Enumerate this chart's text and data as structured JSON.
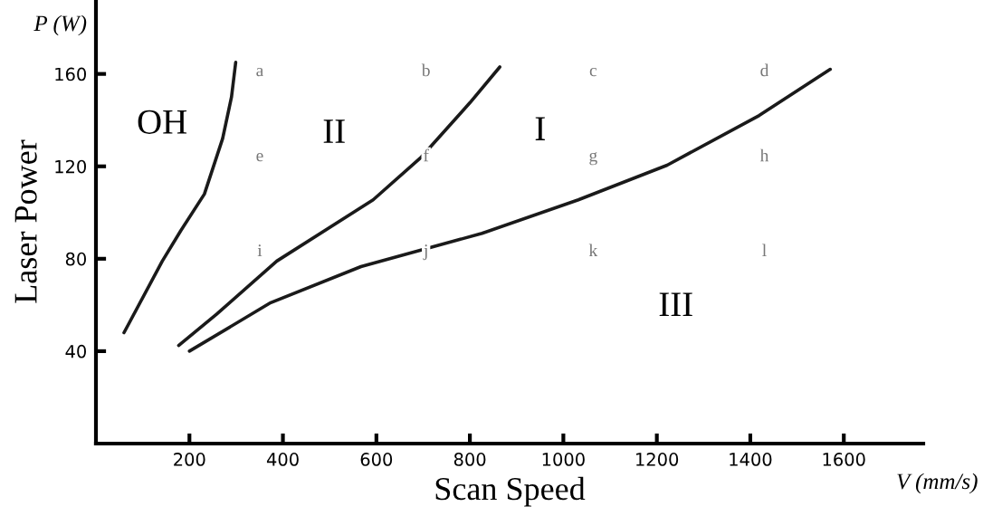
{
  "chart_data": {
    "type": "line",
    "xlabel": "Scan Speed",
    "ylabel": "Laser Power",
    "xlim": [
      0,
      1770
    ],
    "ylim": [
      0,
      192
    ],
    "xticks": [
      200,
      400,
      600,
      800,
      1000,
      1200,
      1400,
      1600
    ],
    "yticks": [
      40,
      80,
      120,
      160
    ],
    "grid": false,
    "marker": "none",
    "line_style": "solid",
    "series": [
      {
        "color": "#1a1a1a",
        "x": [
          60,
          142,
          181,
          232,
          271,
          290,
          299
        ],
        "values": [
          48,
          79,
          92,
          108,
          132,
          150,
          165
        ]
      },
      {
        "color": "#1a1a1a",
        "x": [
          177,
          258,
          387,
          593,
          696,
          800,
          864
        ],
        "values": [
          42.5,
          56,
          79,
          105.5,
          124,
          147.5,
          163
        ]
      },
      {
        "color": "#1a1a1a",
        "x": [
          200,
          374,
          567,
          826,
          1032,
          1222,
          1419,
          1571
        ],
        "values": [
          40,
          61,
          76.6,
          91,
          105.5,
          120.5,
          142,
          162
        ]
      }
    ],
    "annotations": [
      "P (W)",
      "V (mm/s)",
      "OH",
      "II",
      "I",
      "III",
      "a",
      "b",
      "c",
      "d",
      "e",
      "f",
      "g",
      "h",
      "i",
      "j",
      "k",
      "l"
    ]
  }
}
